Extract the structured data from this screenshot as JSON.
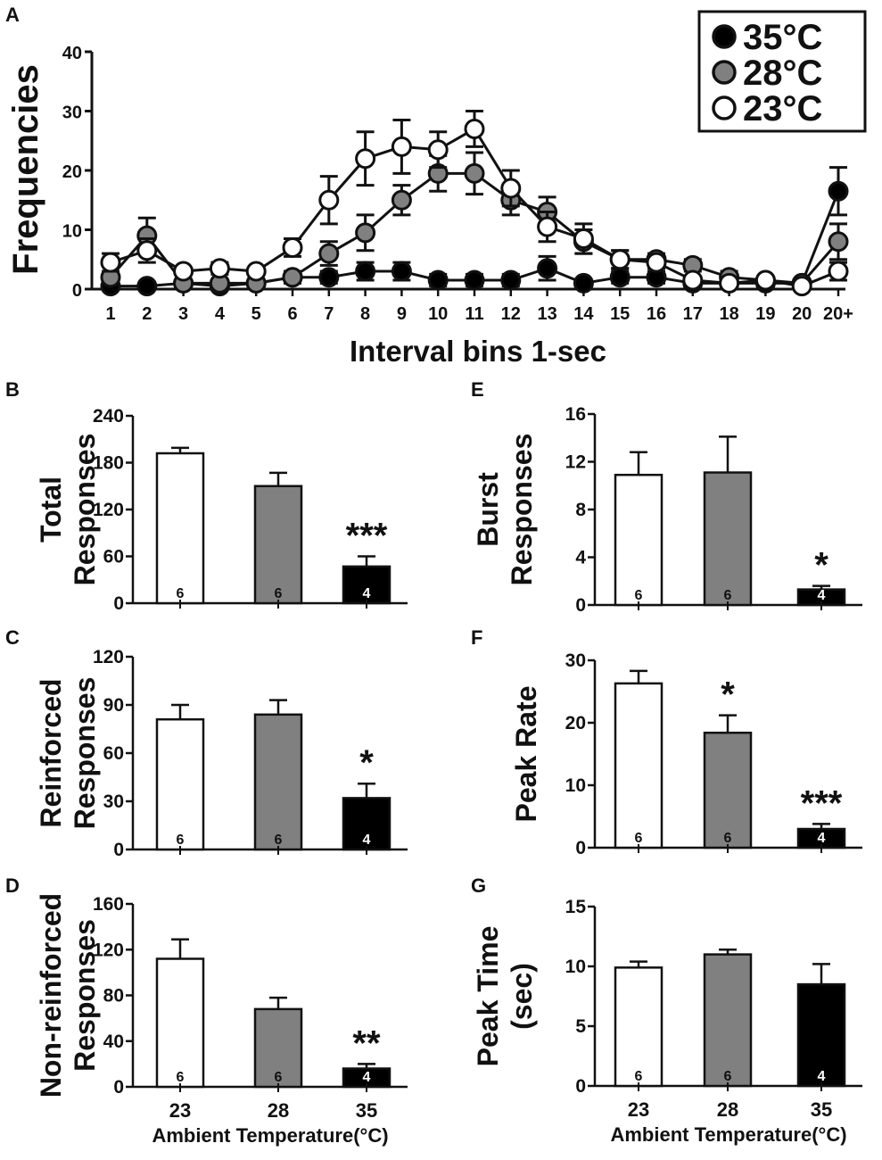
{
  "colors": {
    "c35": "#000000",
    "c28": "#808080",
    "c23": "#ffffff",
    "ink": "#111111"
  },
  "chart_data": [
    {
      "id": "A",
      "type": "line",
      "panel_label": "A",
      "ylabel": "Frequencies",
      "xlabel": "Interval bins 1-sec",
      "categories": [
        "1",
        "2",
        "3",
        "4",
        "5",
        "6",
        "7",
        "8",
        "9",
        "10",
        "11",
        "12",
        "13",
        "14",
        "15",
        "16",
        "17",
        "18",
        "19",
        "20",
        "20+"
      ],
      "ylim": [
        0,
        40
      ],
      "yticks": [
        0,
        10,
        20,
        30,
        40
      ],
      "legend_position": "top-right",
      "legend_degree": "°C",
      "series": [
        {
          "name": "35",
          "legend_label": "35°C",
          "color_key": "c35",
          "values": [
            0.5,
            0.5,
            1,
            0.5,
            1,
            2,
            2,
            3,
            3,
            1.5,
            1.5,
            1.5,
            3.5,
            1,
            2,
            2,
            1,
            1,
            1,
            1,
            16.5
          ],
          "errors": [
            0.5,
            0.5,
            0.5,
            0.5,
            0.5,
            1,
            1,
            1.5,
            1.5,
            1,
            1,
            1,
            2,
            0.5,
            1,
            1,
            0.5,
            0.5,
            0.5,
            0.5,
            4
          ]
        },
        {
          "name": "28",
          "legend_label": "28°C",
          "color_key": "c28",
          "values": [
            2,
            9,
            1,
            1,
            1,
            2,
            6,
            9.5,
            15,
            19.5,
            19.5,
            15,
            13,
            8,
            5,
            5,
            4,
            2,
            1.5,
            1,
            8
          ],
          "errors": [
            1,
            3,
            0.5,
            0.5,
            0.5,
            1,
            2,
            3,
            2.5,
            3,
            3.5,
            2.5,
            2.5,
            2,
            1.5,
            1,
            1,
            1,
            0.5,
            0.5,
            3
          ]
        },
        {
          "name": "23",
          "legend_label": "23°C",
          "color_key": "c23",
          "values": [
            4.5,
            6.5,
            3,
            3.5,
            3,
            7,
            15,
            22,
            24,
            23.5,
            27,
            17,
            10.5,
            8.5,
            5,
            4.5,
            1.5,
            1,
            1.5,
            0.5,
            3
          ],
          "errors": [
            1.5,
            2,
            0.5,
            1,
            0.5,
            1.5,
            4,
            4.5,
            4.5,
            3,
            3,
            3,
            2.5,
            2.5,
            1.5,
            1,
            0.5,
            0.5,
            0.5,
            0.5,
            1.5
          ]
        }
      ]
    },
    {
      "id": "B",
      "type": "bar",
      "panel_label": "B",
      "ylabel_lines": [
        "Total",
        "Responses"
      ],
      "categories": [
        "23",
        "28",
        "35"
      ],
      "values": [
        192,
        150,
        47
      ],
      "errors": [
        7,
        17,
        13
      ],
      "n": [
        "6",
        "6",
        "4"
      ],
      "ylim": [
        0,
        240
      ],
      "yticks": [
        0,
        60,
        120,
        180,
        240
      ],
      "annotations": [
        "",
        "",
        "***"
      ]
    },
    {
      "id": "C",
      "type": "bar",
      "panel_label": "C",
      "ylabel_lines": [
        "Reinforced",
        "Responses"
      ],
      "categories": [
        "23",
        "28",
        "35"
      ],
      "values": [
        81,
        84,
        32
      ],
      "errors": [
        9,
        9,
        9
      ],
      "n": [
        "6",
        "6",
        "4"
      ],
      "ylim": [
        0,
        120
      ],
      "yticks": [
        0,
        30,
        60,
        90,
        120
      ],
      "annotations": [
        "",
        "",
        "*"
      ]
    },
    {
      "id": "D",
      "type": "bar",
      "panel_label": "D",
      "ylabel_lines": [
        "Non-reinforced",
        "Responses"
      ],
      "categories": [
        "23",
        "28",
        "35"
      ],
      "values": [
        112,
        68,
        16
      ],
      "errors": [
        17,
        10,
        4
      ],
      "n": [
        "6",
        "6",
        "4"
      ],
      "ylim": [
        0,
        160
      ],
      "yticks": [
        0,
        40,
        80,
        120,
        160
      ],
      "annotations": [
        "",
        "",
        "**"
      ],
      "xlabel": "Ambient Temperature(°C)"
    },
    {
      "id": "E",
      "type": "bar",
      "panel_label": "E",
      "ylabel_lines": [
        "Burst",
        "Responses"
      ],
      "categories": [
        "23",
        "28",
        "35"
      ],
      "values": [
        10.9,
        11.1,
        1.3
      ],
      "errors": [
        1.9,
        3.0,
        0.3
      ],
      "n": [
        "6",
        "6",
        "4"
      ],
      "ylim": [
        0,
        16
      ],
      "yticks": [
        0,
        4,
        8,
        12,
        16
      ],
      "annotations": [
        "",
        "",
        "*"
      ]
    },
    {
      "id": "F",
      "type": "bar",
      "panel_label": "F",
      "ylabel_lines": [
        "Peak Rate"
      ],
      "categories": [
        "23",
        "28",
        "35"
      ],
      "values": [
        26.3,
        18.4,
        3.0
      ],
      "errors": [
        2.0,
        2.8,
        0.8
      ],
      "n": [
        "6",
        "6",
        "4"
      ],
      "ylim": [
        0,
        30
      ],
      "yticks": [
        0,
        10,
        20,
        30
      ],
      "annotations": [
        "",
        "*",
        "***"
      ]
    },
    {
      "id": "G",
      "type": "bar",
      "panel_label": "G",
      "ylabel_lines": [
        "Peak Time",
        "(sec)"
      ],
      "categories": [
        "23",
        "28",
        "35"
      ],
      "values": [
        9.9,
        11.0,
        8.5
      ],
      "errors": [
        0.5,
        0.4,
        1.7
      ],
      "n": [
        "6",
        "6",
        "4"
      ],
      "ylim": [
        0,
        15
      ],
      "yticks": [
        0,
        5,
        10,
        15
      ],
      "annotations": [
        "",
        "",
        ""
      ],
      "xlabel": "Ambient Temperature(°C)"
    }
  ]
}
